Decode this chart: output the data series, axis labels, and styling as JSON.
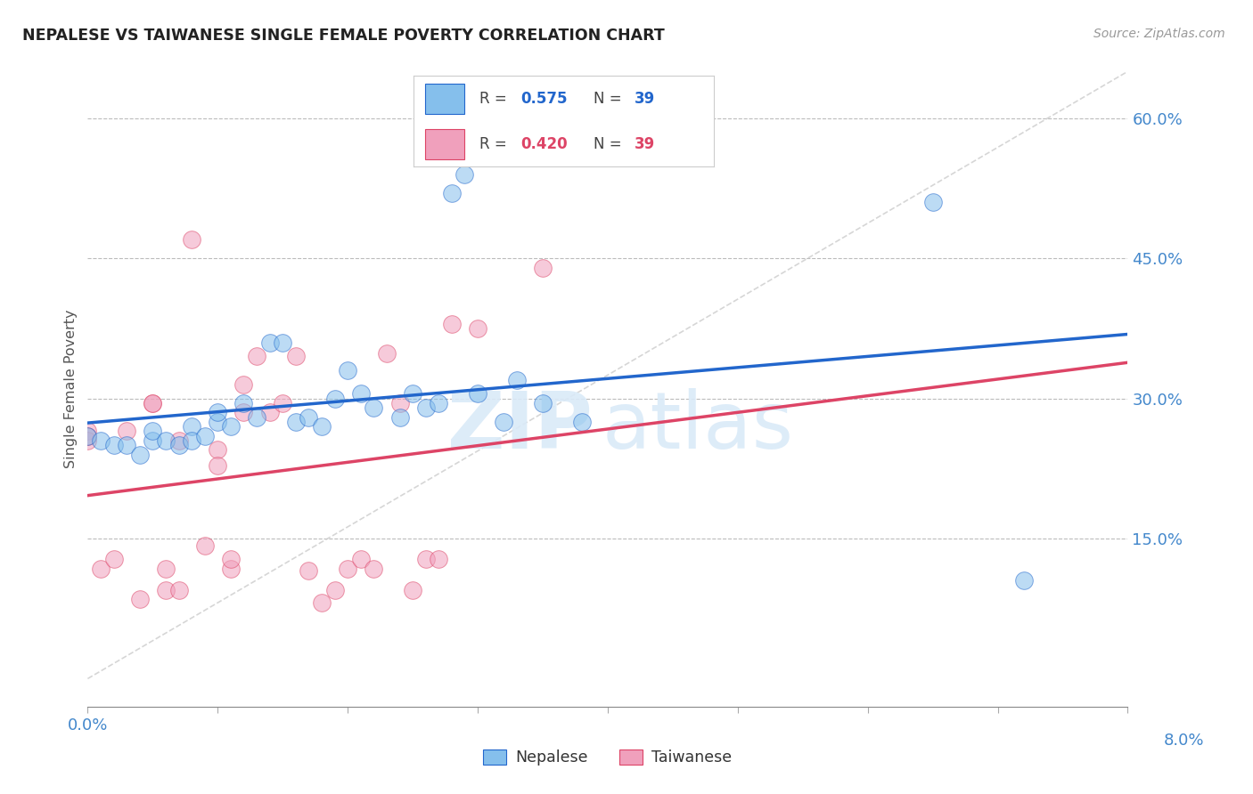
{
  "title": "NEPALESE VS TAIWANESE SINGLE FEMALE POVERTY CORRELATION CHART",
  "source": "Source: ZipAtlas.com",
  "ylabel": "Single Female Poverty",
  "right_yticks": [
    0.15,
    0.3,
    0.45,
    0.6
  ],
  "right_ytick_labels": [
    "15.0%",
    "30.0%",
    "45.0%",
    "60.0%"
  ],
  "nepalese_color": "#85bfec",
  "taiwanese_color": "#f0a0bc",
  "trendline_nepalese": "#2266cc",
  "trendline_taiwanese": "#dd4466",
  "diagonal_color": "#cccccc",
  "nepalese_x": [
    0.0,
    0.001,
    0.002,
    0.003,
    0.004,
    0.005,
    0.005,
    0.006,
    0.007,
    0.008,
    0.008,
    0.009,
    0.01,
    0.01,
    0.011,
    0.012,
    0.013,
    0.014,
    0.015,
    0.016,
    0.017,
    0.018,
    0.019,
    0.02,
    0.021,
    0.022,
    0.024,
    0.025,
    0.026,
    0.027,
    0.028,
    0.029,
    0.03,
    0.032,
    0.033,
    0.035,
    0.038,
    0.065,
    0.072
  ],
  "nepalese_y": [
    0.26,
    0.255,
    0.25,
    0.25,
    0.24,
    0.255,
    0.265,
    0.255,
    0.25,
    0.27,
    0.255,
    0.26,
    0.275,
    0.285,
    0.27,
    0.295,
    0.28,
    0.36,
    0.36,
    0.275,
    0.28,
    0.27,
    0.3,
    0.33,
    0.305,
    0.29,
    0.28,
    0.305,
    0.29,
    0.295,
    0.52,
    0.54,
    0.305,
    0.275,
    0.32,
    0.295,
    0.275,
    0.51,
    0.105
  ],
  "taiwanese_x": [
    0.0,
    0.0,
    0.0,
    0.001,
    0.002,
    0.003,
    0.004,
    0.005,
    0.005,
    0.006,
    0.006,
    0.007,
    0.007,
    0.008,
    0.009,
    0.01,
    0.01,
    0.011,
    0.011,
    0.012,
    0.012,
    0.013,
    0.014,
    0.015,
    0.016,
    0.017,
    0.018,
    0.019,
    0.02,
    0.021,
    0.022,
    0.023,
    0.024,
    0.025,
    0.026,
    0.027,
    0.028,
    0.03,
    0.035
  ],
  "taiwanese_y": [
    0.265,
    0.255,
    0.26,
    0.118,
    0.128,
    0.265,
    0.085,
    0.295,
    0.295,
    0.095,
    0.118,
    0.255,
    0.095,
    0.47,
    0.142,
    0.245,
    0.228,
    0.118,
    0.128,
    0.285,
    0.315,
    0.345,
    0.285,
    0.295,
    0.345,
    0.116,
    0.081,
    0.095,
    0.118,
    0.128,
    0.118,
    0.348,
    0.295,
    0.095,
    0.128,
    0.128,
    0.38,
    0.375,
    0.44
  ],
  "xlim": [
    0.0,
    0.08
  ],
  "ylim": [
    -0.03,
    0.65
  ],
  "xticks": [
    0.0,
    0.01,
    0.02,
    0.03,
    0.04,
    0.05,
    0.06,
    0.07,
    0.08
  ],
  "background_color": "#ffffff",
  "grid_color": "#bbbbbb",
  "axis_label_color": "#4488cc",
  "tick_label_fontsize": 13,
  "legend_r1": "0.575",
  "legend_n1": "39",
  "legend_r2": "0.420",
  "legend_n2": "39"
}
